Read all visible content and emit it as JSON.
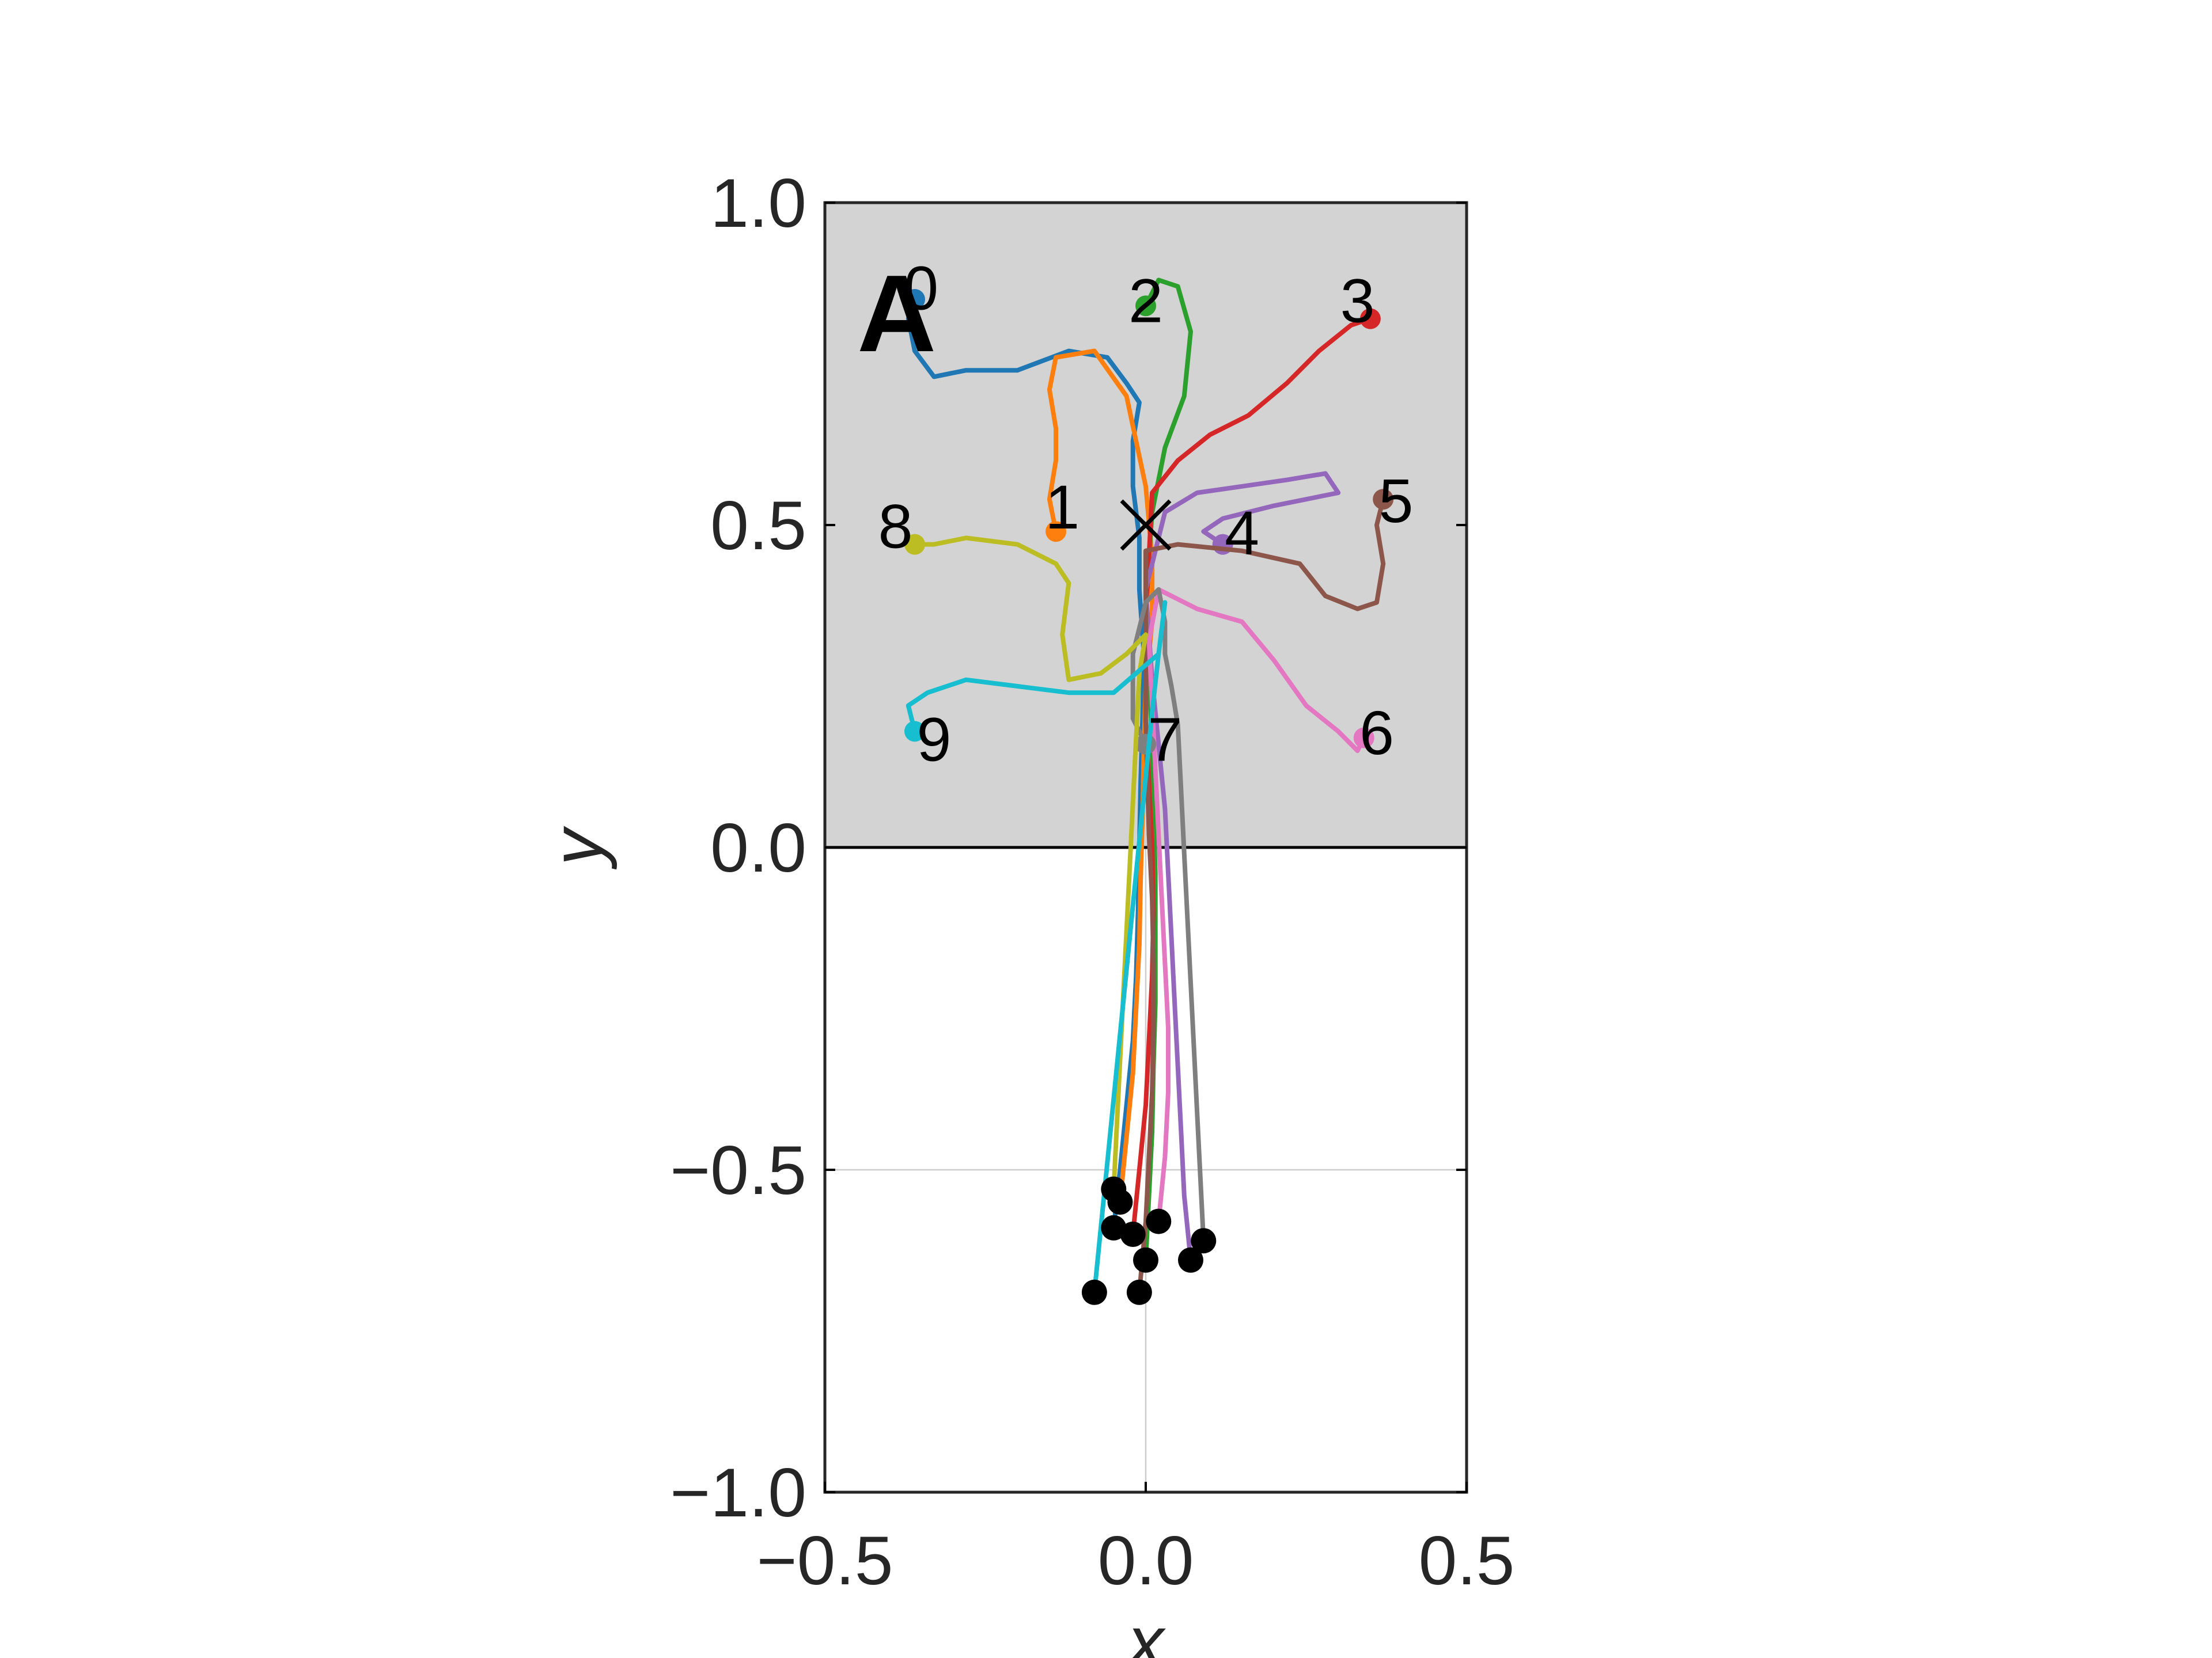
{
  "chart_data": {
    "type": "line",
    "title": "",
    "panel_label": "A",
    "xlabel": "x",
    "ylabel": "y",
    "xlim": [
      -0.5,
      0.5
    ],
    "ylim": [
      -1.0,
      1.0
    ],
    "xticks": [
      -0.5,
      0.0,
      0.5
    ],
    "xtick_labels": [
      "−0.5",
      "0.0",
      "0.5"
    ],
    "yticks": [
      -1.0,
      -0.5,
      0.0,
      0.5,
      1.0
    ],
    "ytick_labels": [
      "−1.0",
      "−0.5",
      "0.0",
      "0.5",
      "1.0"
    ],
    "grid": true,
    "shaded_region": {
      "x": [
        -0.5,
        0.5
      ],
      "y": [
        0.0,
        1.0
      ],
      "color": "#d3d3d3"
    },
    "center_marker": {
      "x": 0.0,
      "y": 0.5,
      "symbol": "x"
    },
    "series": [
      {
        "label": "0",
        "color": "#1f77b4",
        "start": [
          -0.05,
          -0.59
        ],
        "label_pos": [
          -0.35,
          0.86
        ],
        "x": [
          -0.05,
          -0.04,
          -0.03,
          -0.02,
          -0.015,
          -0.012,
          -0.01,
          -0.008,
          -0.005,
          -0.003,
          -0.01,
          -0.01,
          -0.02,
          -0.02,
          -0.01,
          -0.03,
          -0.06,
          -0.12,
          -0.2,
          -0.28,
          -0.33,
          -0.36,
          -0.37,
          -0.36
        ],
        "y": [
          -0.59,
          -0.5,
          -0.4,
          -0.3,
          -0.2,
          -0.1,
          0.0,
          0.1,
          0.2,
          0.3,
          0.4,
          0.48,
          0.56,
          0.63,
          0.69,
          0.72,
          0.76,
          0.77,
          0.74,
          0.74,
          0.73,
          0.77,
          0.82,
          0.85
        ]
      },
      {
        "label": "1",
        "color": "#ff7f0e",
        "start": [
          -0.04,
          -0.55
        ],
        "label_pos": [
          -0.13,
          0.52
        ],
        "x": [
          -0.04,
          -0.03,
          -0.02,
          -0.015,
          -0.01,
          -0.008,
          -0.005,
          -0.003,
          0.0,
          0.01,
          0.01,
          0.0,
          -0.03,
          -0.08,
          -0.14,
          -0.15,
          -0.14,
          -0.14,
          -0.15,
          -0.14
        ],
        "y": [
          -0.55,
          -0.45,
          -0.35,
          -0.25,
          -0.15,
          -0.05,
          0.05,
          0.15,
          0.25,
          0.35,
          0.45,
          0.56,
          0.7,
          0.77,
          0.76,
          0.71,
          0.65,
          0.6,
          0.54,
          0.49
        ]
      },
      {
        "label": "2",
        "color": "#2ca02c",
        "start": [
          0.0,
          -0.64
        ],
        "label_pos": [
          0.0,
          0.84
        ],
        "x": [
          0.0,
          0.005,
          0.01,
          0.012,
          0.015,
          0.015,
          0.015,
          0.012,
          0.01,
          0.005,
          0.0,
          0.01,
          0.03,
          0.06,
          0.07,
          0.05,
          0.02,
          0.0
        ],
        "y": [
          -0.64,
          -0.54,
          -0.44,
          -0.34,
          -0.24,
          -0.14,
          -0.04,
          0.06,
          0.16,
          0.26,
          0.38,
          0.52,
          0.62,
          0.7,
          0.8,
          0.87,
          0.88,
          0.84
        ]
      },
      {
        "label": "3",
        "color": "#d62728",
        "start": [
          -0.02,
          -0.6
        ],
        "label_pos": [
          0.33,
          0.84
        ],
        "x": [
          -0.02,
          -0.01,
          0.0,
          0.005,
          0.01,
          0.012,
          0.01,
          0.005,
          0.0,
          0.0,
          0.01,
          0.05,
          0.1,
          0.16,
          0.22,
          0.27,
          0.32,
          0.35
        ],
        "y": [
          -0.6,
          -0.5,
          -0.4,
          -0.3,
          -0.2,
          -0.1,
          0.0,
          0.1,
          0.2,
          0.35,
          0.55,
          0.6,
          0.64,
          0.67,
          0.72,
          0.77,
          0.81,
          0.82
        ]
      },
      {
        "label": "4",
        "color": "#9467bd",
        "start": [
          0.07,
          -0.64
        ],
        "label_pos": [
          0.15,
          0.48
        ],
        "x": [
          0.07,
          0.06,
          0.055,
          0.05,
          0.045,
          0.04,
          0.035,
          0.03,
          0.02,
          0.01,
          0.0,
          0.03,
          0.08,
          0.15,
          0.22,
          0.28,
          0.3,
          0.2,
          0.12,
          0.09,
          0.12
        ],
        "y": [
          -0.64,
          -0.54,
          -0.44,
          -0.34,
          -0.24,
          -0.14,
          -0.04,
          0.06,
          0.16,
          0.26,
          0.4,
          0.52,
          0.55,
          0.56,
          0.57,
          0.58,
          0.55,
          0.53,
          0.51,
          0.49,
          0.47
        ]
      },
      {
        "label": "5",
        "color": "#8c564b",
        "start": [
          -0.01,
          -0.69
        ],
        "label_pos": [
          0.39,
          0.53
        ],
        "x": [
          -0.01,
          0.0,
          0.005,
          0.01,
          0.012,
          0.012,
          0.01,
          0.005,
          0.0,
          0.0,
          0.05,
          0.15,
          0.24,
          0.28,
          0.33,
          0.36,
          0.37,
          0.36,
          0.37
        ],
        "y": [
          -0.69,
          -0.58,
          -0.48,
          -0.38,
          -0.28,
          -0.18,
          -0.08,
          0.02,
          0.2,
          0.46,
          0.47,
          0.46,
          0.44,
          0.39,
          0.37,
          0.38,
          0.44,
          0.5,
          0.54
        ]
      },
      {
        "label": "6",
        "color": "#e377c2",
        "start": [
          0.02,
          -0.58
        ],
        "label_pos": [
          0.36,
          0.17
        ],
        "x": [
          0.02,
          0.03,
          0.035,
          0.035,
          0.03,
          0.025,
          0.02,
          0.015,
          0.01,
          0.005,
          0.02,
          0.08,
          0.15,
          0.2,
          0.25,
          0.3,
          0.33,
          0.34
        ],
        "y": [
          -0.58,
          -0.48,
          -0.38,
          -0.28,
          -0.18,
          -0.08,
          0.02,
          0.12,
          0.22,
          0.32,
          0.4,
          0.37,
          0.35,
          0.29,
          0.22,
          0.18,
          0.15,
          0.17
        ]
      },
      {
        "label": "7",
        "color": "#7f7f7f",
        "start": [
          0.09,
          -0.61
        ],
        "label_pos": [
          0.03,
          0.16
        ],
        "x": [
          0.09,
          0.085,
          0.08,
          0.075,
          0.07,
          0.065,
          0.06,
          0.055,
          0.05,
          0.04,
          0.03,
          0.03,
          0.02,
          0.0,
          -0.02,
          -0.02,
          0.0
        ],
        "y": [
          -0.61,
          -0.51,
          -0.41,
          -0.31,
          -0.21,
          -0.11,
          -0.01,
          0.09,
          0.19,
          0.25,
          0.3,
          0.35,
          0.4,
          0.38,
          0.3,
          0.2,
          0.16
        ]
      },
      {
        "label": "8",
        "color": "#bcbd22",
        "start": [
          -0.05,
          -0.53
        ],
        "label_pos": [
          -0.39,
          0.49
        ],
        "x": [
          -0.05,
          -0.045,
          -0.04,
          -0.035,
          -0.03,
          -0.025,
          -0.02,
          -0.015,
          -0.01,
          -0.005,
          0.0,
          -0.03,
          -0.07,
          -0.12,
          -0.13,
          -0.12,
          -0.14,
          -0.2,
          -0.28,
          -0.33,
          -0.36
        ],
        "y": [
          -0.53,
          -0.43,
          -0.33,
          -0.23,
          -0.13,
          -0.03,
          0.07,
          0.17,
          0.27,
          0.3,
          0.33,
          0.3,
          0.27,
          0.26,
          0.33,
          0.41,
          0.44,
          0.47,
          0.48,
          0.47,
          0.47
        ]
      },
      {
        "label": "9",
        "color": "#17becf",
        "start": [
          -0.08,
          -0.69
        ],
        "label_pos": [
          -0.33,
          0.16
        ],
        "x": [
          -0.08,
          -0.07,
          -0.06,
          -0.05,
          -0.04,
          -0.03,
          -0.02,
          -0.01,
          0.0,
          0.01,
          0.02,
          0.03,
          0.02,
          -0.05,
          -0.12,
          -0.2,
          -0.28,
          -0.34,
          -0.37,
          -0.36
        ],
        "y": [
          -0.69,
          -0.59,
          -0.49,
          -0.39,
          -0.29,
          -0.19,
          -0.09,
          0.01,
          0.11,
          0.21,
          0.3,
          0.38,
          0.3,
          0.24,
          0.24,
          0.25,
          0.26,
          0.24,
          0.22,
          0.18
        ]
      }
    ]
  }
}
